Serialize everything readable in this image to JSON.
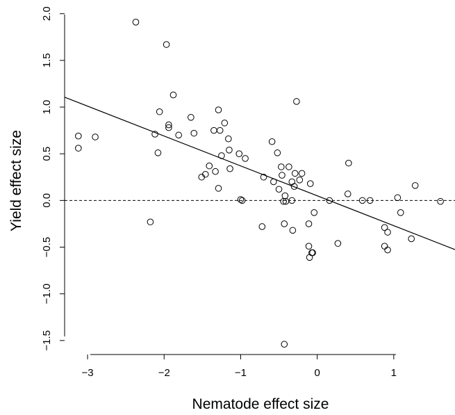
{
  "chart_data": {
    "type": "scatter",
    "title": "",
    "xlabel": "Nematode effect size",
    "ylabel": "Yield effect size",
    "xlim": [
      -3.3,
      1.8
    ],
    "ylim": [
      -1.65,
      2.05
    ],
    "x_ticks": [
      -3,
      -2,
      -1,
      0,
      1
    ],
    "y_ticks": [
      -1.5,
      -1.0,
      -0.5,
      0.0,
      0.5,
      1.0,
      1.5,
      2.0
    ],
    "x_tick_labels": [
      "−3",
      "−2",
      "−1",
      "0",
      "1"
    ],
    "y_tick_labels": [
      "−1.5",
      "−1.0",
      "−0.5",
      "0.0",
      "0.5",
      "1.0",
      "1.5",
      "2.0"
    ],
    "grid": false,
    "legend": "none",
    "marker": "open-circle",
    "points": [
      [
        -3.12,
        0.69
      ],
      [
        -3.12,
        0.56
      ],
      [
        -2.9,
        0.68
      ],
      [
        -2.37,
        1.91
      ],
      [
        -2.18,
        -0.23
      ],
      [
        -2.12,
        0.71
      ],
      [
        -2.08,
        0.51
      ],
      [
        -2.06,
        0.95
      ],
      [
        -1.97,
        1.67
      ],
      [
        -1.94,
        0.81
      ],
      [
        -1.94,
        0.78
      ],
      [
        -1.88,
        1.13
      ],
      [
        -1.81,
        0.7
      ],
      [
        -1.65,
        0.89
      ],
      [
        -1.61,
        0.72
      ],
      [
        -1.51,
        0.25
      ],
      [
        -1.46,
        0.28
      ],
      [
        -1.41,
        0.37
      ],
      [
        -1.35,
        0.75
      ],
      [
        -1.33,
        0.31
      ],
      [
        -1.29,
        0.97
      ],
      [
        -1.29,
        0.13
      ],
      [
        -1.27,
        0.75
      ],
      [
        -1.25,
        0.48
      ],
      [
        -1.21,
        0.83
      ],
      [
        -1.16,
        0.66
      ],
      [
        -1.15,
        0.54
      ],
      [
        -1.14,
        0.34
      ],
      [
        -1.02,
        0.5
      ],
      [
        -1.0,
        0.01
      ],
      [
        -0.98,
        0.0
      ],
      [
        -0.94,
        0.45
      ],
      [
        -0.72,
        -0.28
      ],
      [
        -0.7,
        0.25
      ],
      [
        -0.59,
        0.63
      ],
      [
        -0.57,
        0.2
      ],
      [
        -0.52,
        0.51
      ],
      [
        -0.5,
        0.12
      ],
      [
        -0.47,
        0.36
      ],
      [
        -0.46,
        0.27
      ],
      [
        -0.44,
        -0.01
      ],
      [
        -0.43,
        -0.25
      ],
      [
        -0.43,
        -1.54
      ],
      [
        -0.42,
        0.05
      ],
      [
        -0.41,
        -0.01
      ],
      [
        -0.37,
        0.36
      ],
      [
        -0.33,
        0.2
      ],
      [
        -0.33,
        0.0
      ],
      [
        -0.32,
        -0.32
      ],
      [
        -0.3,
        0.15
      ],
      [
        -0.29,
        0.29
      ],
      [
        -0.27,
        1.06
      ],
      [
        -0.23,
        0.22
      ],
      [
        -0.2,
        0.29
      ],
      [
        -0.11,
        -0.49
      ],
      [
        -0.11,
        -0.25
      ],
      [
        -0.1,
        -0.61
      ],
      [
        -0.09,
        0.18
      ],
      [
        -0.07,
        -0.56
      ],
      [
        -0.06,
        -0.56
      ],
      [
        -0.04,
        -0.13
      ],
      [
        0.16,
        0.0
      ],
      [
        0.27,
        -0.46
      ],
      [
        0.4,
        0.07
      ],
      [
        0.41,
        0.4
      ],
      [
        0.59,
        0.0
      ],
      [
        0.69,
        0.0
      ],
      [
        0.88,
        -0.29
      ],
      [
        0.88,
        -0.49
      ],
      [
        0.92,
        -0.53
      ],
      [
        0.92,
        -0.34
      ],
      [
        1.05,
        0.03
      ],
      [
        1.09,
        -0.13
      ],
      [
        1.23,
        -0.41
      ],
      [
        1.28,
        0.16
      ],
      [
        1.61,
        -0.01
      ]
    ],
    "regression_line": {
      "intercept": 0.05,
      "slope": -0.32
    },
    "reference_line": {
      "y": 0.0,
      "style": "dashed"
    }
  }
}
